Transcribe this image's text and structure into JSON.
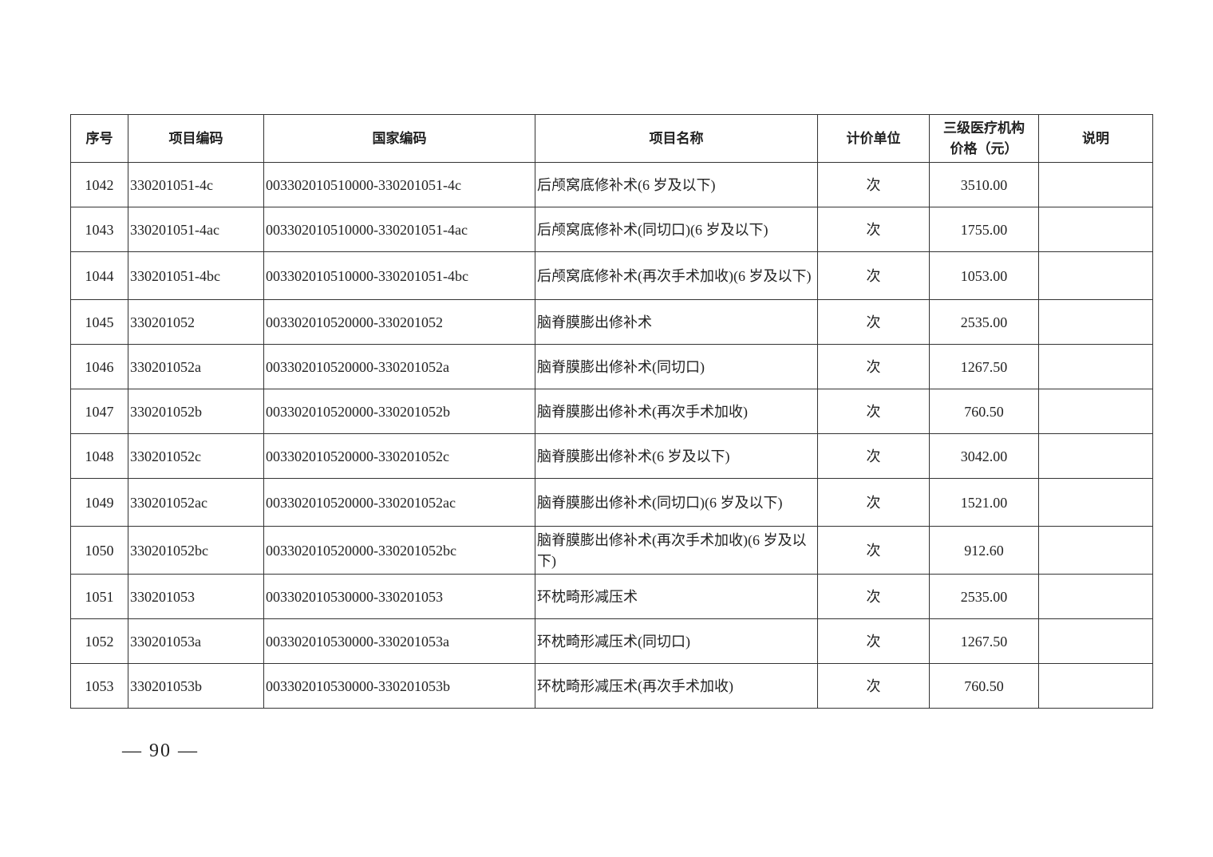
{
  "table": {
    "headers": [
      "序号",
      "项目编码",
      "国家编码",
      "项目名称",
      "计价单位",
      "三级医疗机构\n价格（元）",
      "说明"
    ],
    "header_price_line1": "三级医疗机构",
    "header_price_line2": "价格（元）",
    "rows": [
      {
        "no": "1042",
        "code": "330201051-4c",
        "national": "003302010510000-330201051-4c",
        "name": "后颅窝底修补术(6 岁及以下)",
        "unit": "次",
        "price": "3510.00",
        "note": ""
      },
      {
        "no": "1043",
        "code": "330201051-4ac",
        "national": "003302010510000-330201051-4ac",
        "name": "后颅窝底修补术(同切口)(6 岁及以下)",
        "unit": "次",
        "price": "1755.00",
        "note": ""
      },
      {
        "no": "1044",
        "code": "330201051-4bc",
        "national": "003302010510000-330201051-4bc",
        "name": "后颅窝底修补术(再次手术加收)(6 岁及以下)",
        "unit": "次",
        "price": "1053.00",
        "note": ""
      },
      {
        "no": "1045",
        "code": "330201052",
        "national": "003302010520000-330201052",
        "name": "脑脊膜膨出修补术",
        "unit": "次",
        "price": "2535.00",
        "note": ""
      },
      {
        "no": "1046",
        "code": "330201052a",
        "national": "003302010520000-330201052a",
        "name": "脑脊膜膨出修补术(同切口)",
        "unit": "次",
        "price": "1267.50",
        "note": ""
      },
      {
        "no": "1047",
        "code": "330201052b",
        "national": "003302010520000-330201052b",
        "name": "脑脊膜膨出修补术(再次手术加收)",
        "unit": "次",
        "price": "760.50",
        "note": ""
      },
      {
        "no": "1048",
        "code": "330201052c",
        "national": "003302010520000-330201052c",
        "name": "脑脊膜膨出修补术(6 岁及以下)",
        "unit": "次",
        "price": "3042.00",
        "note": ""
      },
      {
        "no": "1049",
        "code": "330201052ac",
        "national": "003302010520000-330201052ac",
        "name": "脑脊膜膨出修补术(同切口)(6 岁及以下)",
        "unit": "次",
        "price": "1521.00",
        "note": ""
      },
      {
        "no": "1050",
        "code": "330201052bc",
        "national": "003302010520000-330201052bc",
        "name": "脑脊膜膨出修补术(再次手术加收)(6 岁及以下)",
        "unit": "次",
        "price": "912.60",
        "note": ""
      },
      {
        "no": "1051",
        "code": "330201053",
        "national": "003302010530000-330201053",
        "name": "环枕畸形减压术",
        "unit": "次",
        "price": "2535.00",
        "note": ""
      },
      {
        "no": "1052",
        "code": "330201053a",
        "national": "003302010530000-330201053a",
        "name": "环枕畸形减压术(同切口)",
        "unit": "次",
        "price": "1267.50",
        "note": ""
      },
      {
        "no": "1053",
        "code": "330201053b",
        "national": "003302010530000-330201053b",
        "name": "环枕畸形减压术(再次手术加收)",
        "unit": "次",
        "price": "760.50",
        "note": ""
      }
    ]
  },
  "footer": {
    "page_number": "— 90 —"
  }
}
